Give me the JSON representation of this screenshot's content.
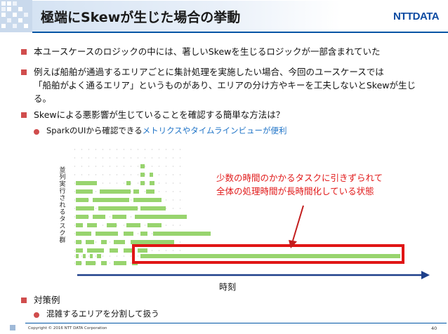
{
  "header": {
    "title": "極端にSkewが生じた場合の挙動",
    "logo_text": "NTTDATA"
  },
  "bullets": {
    "b1": "本ユースケースのロジックの中には、著しいSkewを生じるロジックが一部含まれていた",
    "b2_line1": "例えば船舶が通過するエリアごとに集計処理を実施したい場合、今回のユースケースでは",
    "b2_line2": "「船舶がよく通るエリア」というものがあり、エリアの分け方やキーを工夫しないとSkewが生じ",
    "b2_line3": "る。",
    "b3": "Skewによる悪影響が生じていることを確認する簡単な方法は？",
    "b3_sub_prefix": "SparkのUIから確認できる",
    "b3_sub_highlight": "メトリクスやタイムラインビューが便利",
    "b4": "対策例",
    "b4_sub": "混雑するエリアを分割して扱う"
  },
  "chart": {
    "ylabel": "並列実行されるタスク群",
    "xlabel": "時刻",
    "annotation_line1": "少数の時間のかかるタスクに引きずられて",
    "annotation_line2": "全体の処理時間が長時間化している状態",
    "colors": {
      "bar": "#98d46e",
      "dash": "#b9b9b9",
      "highlight": "#e01515",
      "axis": "#1d3f8a"
    }
  },
  "footer": {
    "copyright": "Copyright © 2016 NTT DATA Corporation",
    "page": "40"
  }
}
